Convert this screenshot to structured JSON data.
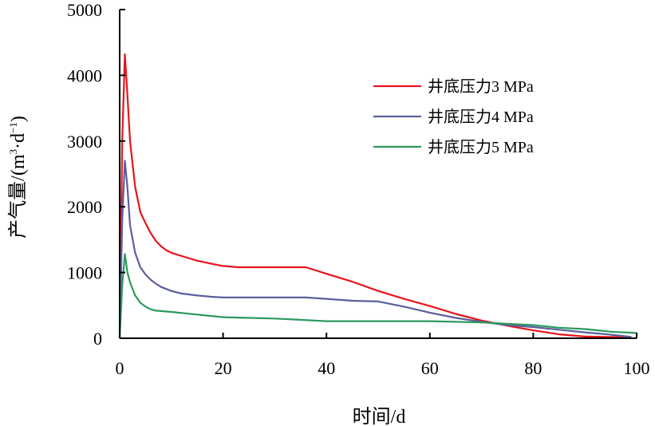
{
  "chart_data": {
    "type": "line",
    "xlabel": "时间/d",
    "ylabel": "产气量/(m³·d⁻¹)",
    "ylabel_parts": {
      "main": "产气量/(m",
      "sup1": "3",
      "mid": "·d",
      "sup2": "−1",
      "end": ")"
    },
    "xlim": [
      0,
      100
    ],
    "ylim": [
      0,
      5000
    ],
    "xticks": [
      0,
      20,
      40,
      60,
      80,
      100
    ],
    "yticks": [
      0,
      1000,
      2000,
      3000,
      4000,
      5000
    ],
    "xtick_labels": [
      "0",
      "20",
      "40",
      "60",
      "80",
      "100"
    ],
    "ytick_labels": [
      "0",
      "1000",
      "2000",
      "3000",
      "4000",
      "5000"
    ],
    "grid": false,
    "legend_position": "top-right",
    "series": [
      {
        "name": "井底压力3 MPa",
        "color": "#e8141b",
        "x": [
          0,
          0.5,
          1,
          1.5,
          2,
          3,
          4,
          5,
          6,
          7,
          8,
          9,
          10,
          12,
          15,
          18,
          20,
          23,
          25,
          30,
          33,
          36,
          40,
          45,
          50,
          55,
          60,
          65,
          70,
          75,
          80,
          85,
          90,
          95,
          99
        ],
        "y": [
          0,
          3000,
          4320,
          3700,
          3000,
          2300,
          1920,
          1750,
          1600,
          1480,
          1400,
          1340,
          1300,
          1250,
          1180,
          1130,
          1100,
          1080,
          1080,
          1080,
          1080,
          1080,
          980,
          860,
          720,
          600,
          490,
          370,
          270,
          190,
          120,
          60,
          25,
          20,
          20
        ]
      },
      {
        "name": "井底压力4 MPa",
        "color": "#5b5f9e",
        "x": [
          0,
          0.5,
          1,
          1.5,
          2,
          3,
          4,
          5,
          6,
          7,
          8,
          10,
          12,
          15,
          18,
          20,
          25,
          30,
          36,
          40,
          45,
          50,
          55,
          60,
          65,
          70,
          75,
          80,
          85,
          90,
          95,
          99
        ],
        "y": [
          0,
          1800,
          2700,
          2300,
          1720,
          1300,
          1080,
          970,
          890,
          830,
          780,
          720,
          680,
          650,
          630,
          620,
          620,
          620,
          620,
          600,
          570,
          560,
          480,
          390,
          310,
          250,
          200,
          170,
          130,
          90,
          55,
          20
        ]
      },
      {
        "name": "井底压力5 MPa",
        "color": "#2b9a5c",
        "x": [
          0,
          0.5,
          1,
          1.5,
          2,
          3,
          4,
          5,
          6,
          7,
          10,
          15,
          20,
          25,
          30,
          35,
          40,
          45,
          50,
          55,
          60,
          65,
          70,
          75,
          80,
          85,
          90,
          95,
          100
        ],
        "y": [
          0,
          800,
          1280,
          1000,
          850,
          650,
          540,
          480,
          440,
          420,
          400,
          360,
          320,
          310,
          300,
          280,
          260,
          260,
          260,
          260,
          260,
          250,
          240,
          220,
          200,
          160,
          140,
          100,
          80
        ]
      }
    ]
  }
}
